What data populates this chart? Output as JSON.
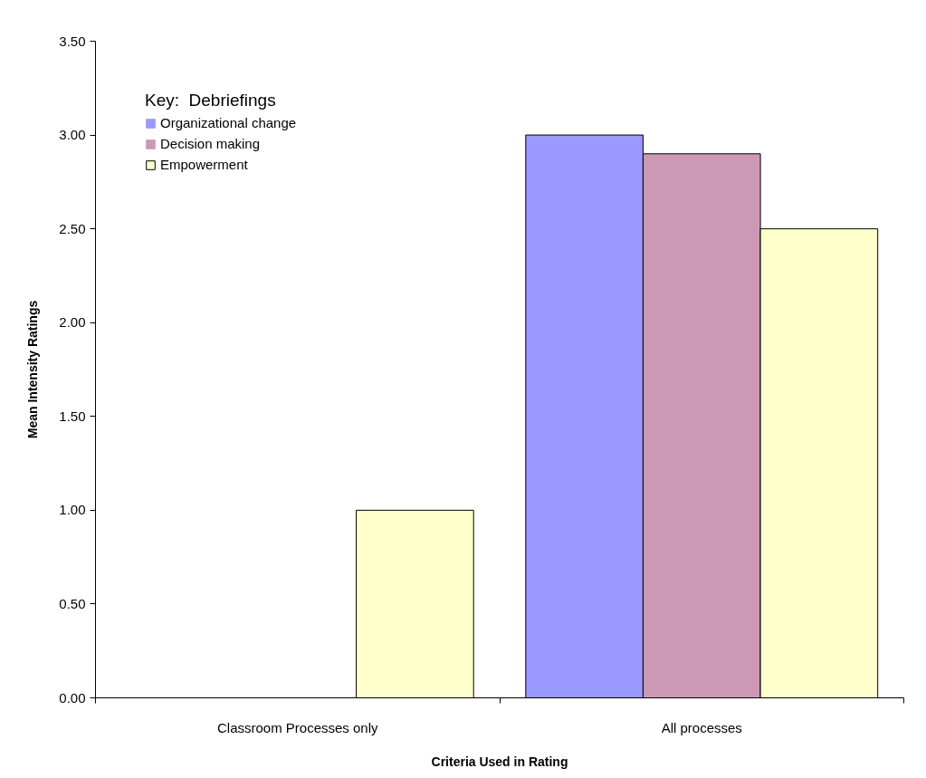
{
  "chart_data": {
    "type": "bar",
    "xlabel": "Criteria Used in Rating",
    "ylabel": "Mean Intensity Ratings",
    "legend_title": "Key:  Debriefings",
    "categories": [
      "Classroom Processes only",
      "All processes"
    ],
    "series": [
      {
        "name": "Organizational change",
        "color": "#9999ff",
        "values": [
          0,
          3.0
        ]
      },
      {
        "name": "Decision making",
        "color": "#cc99b4",
        "values": [
          0,
          2.9
        ]
      },
      {
        "name": "Empowerment",
        "color": "#ffffcc",
        "values": [
          1.0,
          2.5
        ]
      }
    ],
    "ylim": [
      0,
      3.5
    ],
    "yticks": [
      {
        "value": 0,
        "label": "0.00"
      },
      {
        "value": 0.5,
        "label": "0.50"
      },
      {
        "value": 1,
        "label": "1.00"
      },
      {
        "value": 1.5,
        "label": "1.50"
      },
      {
        "value": 2,
        "label": "2.00"
      },
      {
        "value": 2.5,
        "label": "2.50"
      },
      {
        "value": 3,
        "label": "3.00"
      },
      {
        "value": 3.5,
        "label": "3.50"
      }
    ],
    "grid": false,
    "legend": "top left"
  }
}
